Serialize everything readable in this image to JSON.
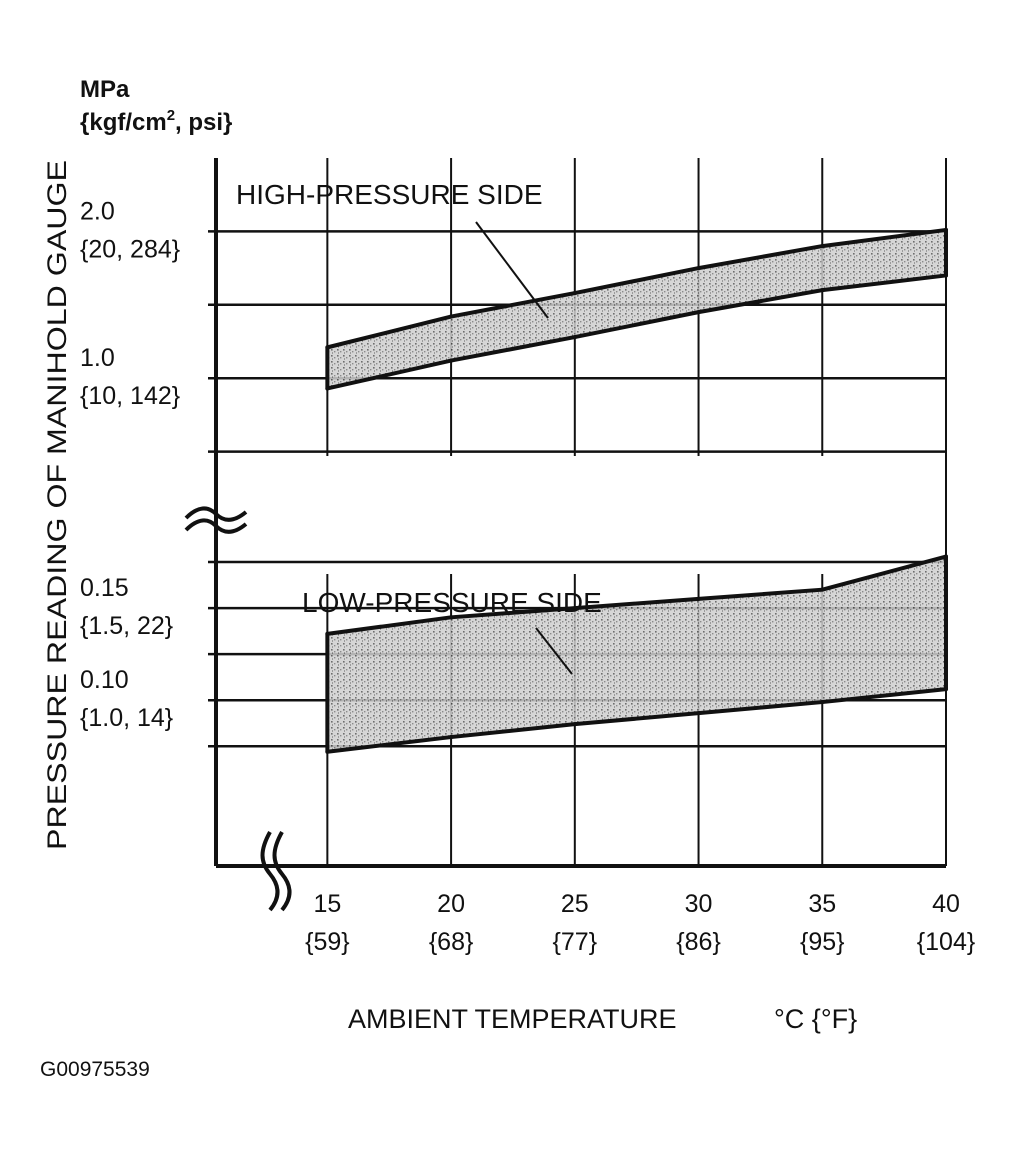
{
  "chart_data": {
    "type": "area",
    "y_unit_line1": "MPa",
    "y_unit_line2_pre": "{kgf/cm",
    "y_unit_line2_sup": "2",
    "y_unit_line2_post": ", psi}",
    "ylabel": "PRESSURE READING OF MANIHOLD GAUGE",
    "xlabel": "AMBIENT TEMPERATURE",
    "xlabel_unit": "°C {°F}",
    "figure_code": "G00975539",
    "x_ticks": [
      {
        "value": 15,
        "label": "15",
        "sublabel": "{59}"
      },
      {
        "value": 20,
        "label": "20",
        "sublabel": "{68}"
      },
      {
        "value": 25,
        "label": "25",
        "sublabel": "{77}"
      },
      {
        "value": 30,
        "label": "30",
        "sublabel": "{86}"
      },
      {
        "value": 35,
        "label": "35",
        "sublabel": "{95}"
      },
      {
        "value": 40,
        "label": "40",
        "sublabel": "{104}"
      }
    ],
    "xlim": [
      10.5,
      40
    ],
    "high_panel": {
      "ylim": [
        0.0,
        2.5
      ],
      "gridlines": [
        0.5,
        1.0,
        1.5,
        2.0
      ],
      "y_ticks": [
        {
          "value": 2.0,
          "label": "2.0",
          "sublabel": "{20, 284}"
        },
        {
          "value": 1.0,
          "label": "1.0",
          "sublabel": "{10, 142}"
        }
      ],
      "series": {
        "name": "HIGH-PRESSURE SIDE",
        "x": [
          15,
          20,
          25,
          30,
          35,
          40
        ],
        "upper": [
          1.21,
          1.42,
          1.58,
          1.75,
          1.9,
          2.01
        ],
        "lower": [
          0.93,
          1.12,
          1.28,
          1.45,
          1.6,
          1.7
        ]
      }
    },
    "low_panel": {
      "ylim": [
        0.01,
        0.2
      ],
      "gridlines": [
        0.075,
        0.1,
        0.125,
        0.15,
        0.175
      ],
      "y_ticks": [
        {
          "value": 0.15,
          "label": "0.15",
          "sublabel": "{1.5, 22}"
        },
        {
          "value": 0.1,
          "label": "0.10",
          "sublabel": "{1.0, 14}"
        }
      ],
      "series": {
        "name": "LOW-PRESSURE SIDE",
        "x": [
          15,
          20,
          25,
          30,
          35,
          40
        ],
        "upper": [
          0.136,
          0.145,
          0.15,
          0.155,
          0.16,
          0.178
        ],
        "lower": [
          0.072,
          0.08,
          0.087,
          0.093,
          0.099,
          0.106
        ]
      }
    }
  }
}
